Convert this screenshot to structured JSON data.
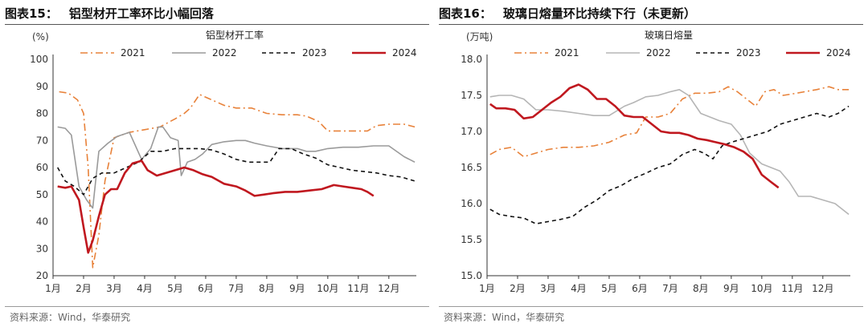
{
  "figures": [
    {
      "number": "图表15：",
      "heading": "铝型材开工率环比小幅回落",
      "source": "资料来源：Wind，华泰研究"
    },
    {
      "number": "图表16：",
      "heading": "玻璃日熔量环比持续下行（未更新）",
      "source": "资料来源：Wind，华泰研究"
    }
  ],
  "chart_data": [
    {
      "type": "line",
      "title": "铝型材开工率",
      "ylabel": "(%)",
      "xlabel": "",
      "ylim": [
        20,
        100
      ],
      "yticks": [
        20,
        30,
        40,
        50,
        60,
        70,
        80,
        90,
        100
      ],
      "xlim": [
        1,
        12.9
      ],
      "categories": [
        "1月",
        "2月",
        "3月",
        "4月",
        "5月",
        "6月",
        "7月",
        "8月",
        "9月",
        "10月",
        "11月",
        "12月"
      ],
      "legend": "top",
      "series": [
        {
          "name": "2021",
          "color": "#e8823a",
          "dash": "dashdot",
          "x": [
            1.2,
            1.5,
            1.8,
            2.0,
            2.15,
            2.3,
            2.5,
            2.7,
            3.0,
            3.5,
            4.0,
            4.5,
            5.0,
            5.3,
            5.5,
            5.8,
            6.2,
            6.6,
            7.0,
            7.5,
            8.0,
            8.5,
            9.0,
            9.3,
            9.7,
            10.0,
            10.5,
            11.0,
            11.3,
            11.6,
            12.0,
            12.5,
            12.85
          ],
          "values": [
            88,
            87.5,
            85,
            80,
            60,
            23,
            35,
            55,
            71,
            73,
            74,
            75,
            78,
            80,
            82,
            87,
            85,
            83,
            82,
            82,
            80,
            79.5,
            79.5,
            79,
            77,
            73.5,
            73.5,
            73.5,
            73.5,
            75.5,
            76,
            76,
            75
          ]
        },
        {
          "name": "2022",
          "color": "#9a9a9a",
          "dash": "solid",
          "x": [
            1.15,
            1.4,
            1.6,
            1.85,
            2.1,
            2.3,
            2.5,
            2.8,
            3.1,
            3.5,
            3.9,
            4.2,
            4.45,
            4.6,
            4.85,
            5.1,
            5.2,
            5.4,
            5.65,
            5.9,
            6.2,
            6.6,
            7.0,
            7.3,
            7.6,
            8.0,
            8.5,
            9.0,
            9.3,
            9.6,
            10.0,
            10.5,
            11.0,
            11.5,
            12.0,
            12.5,
            12.85
          ],
          "values": [
            75,
            74.5,
            72,
            53,
            48,
            45,
            66,
            69,
            71.5,
            73,
            63,
            67,
            75,
            75,
            71,
            70,
            57,
            62,
            63,
            65,
            68.5,
            69.5,
            70,
            70,
            69,
            68,
            67,
            67,
            66,
            66,
            67,
            67.5,
            67.5,
            68,
            68,
            64,
            62
          ]
        },
        {
          "name": "2023",
          "color": "#111111",
          "dash": "dashed",
          "x": [
            1.15,
            1.4,
            1.7,
            2.0,
            2.3,
            2.6,
            3.0,
            3.4,
            3.8,
            4.2,
            4.6,
            5.0,
            5.4,
            5.8,
            6.2,
            6.6,
            7.0,
            7.4,
            7.8,
            8.1,
            8.4,
            8.8,
            9.2,
            9.6,
            10.0,
            10.4,
            10.8,
            11.2,
            11.6,
            12.0,
            12.4,
            12.85
          ],
          "values": [
            60,
            55,
            53,
            50,
            56,
            58,
            58,
            60,
            62,
            66,
            66,
            67,
            67,
            67,
            66.5,
            65,
            63,
            62,
            62,
            62,
            67,
            67,
            65,
            63.5,
            61,
            60,
            59,
            58.5,
            58,
            57,
            56.5,
            55
          ]
        },
        {
          "name": "2024",
          "color": "#c0181f",
          "dash": "solid",
          "width": 2.6,
          "x": [
            1.15,
            1.4,
            1.6,
            1.85,
            2.0,
            2.15,
            2.3,
            2.5,
            2.7,
            2.9,
            3.1,
            3.35,
            3.6,
            3.9,
            4.1,
            4.4,
            4.7,
            5.0,
            5.3,
            5.6,
            5.9,
            6.2,
            6.6,
            7.0,
            7.3,
            7.6,
            7.9,
            8.2,
            8.6,
            9.0,
            9.4,
            9.8,
            10.2,
            10.5,
            10.8,
            11.1,
            11.3,
            11.5
          ],
          "values": [
            53,
            52.5,
            53,
            48,
            38,
            28.5,
            33,
            42,
            50,
            52,
            52,
            58,
            61.5,
            62.5,
            59,
            57,
            58,
            59,
            60,
            59,
            57.5,
            56.5,
            54,
            53,
            51.5,
            49.5,
            50,
            50.5,
            51,
            51,
            51.5,
            52,
            53.5,
            53,
            52.5,
            52,
            51,
            49.5
          ]
        }
      ]
    },
    {
      "type": "line",
      "title": "玻璃日熔量",
      "ylabel": "(万吨)",
      "xlabel": "",
      "ylim": [
        15.0,
        18.0
      ],
      "yticks": [
        "15.0",
        "15.5",
        "16.0",
        "16.5",
        "17.0",
        "17.5",
        "18.0"
      ],
      "xlim": [
        1,
        12.9
      ],
      "categories": [
        "1月",
        "2月",
        "3月",
        "4月",
        "5月",
        "6月",
        "7月",
        "8月",
        "9月",
        "10月",
        "11月",
        "12月"
      ],
      "legend": "top",
      "series": [
        {
          "name": "2021",
          "color": "#e8823a",
          "dash": "dashdot",
          "x": [
            1.1,
            1.4,
            1.8,
            2.2,
            2.6,
            3.0,
            3.5,
            4.0,
            4.5,
            5.0,
            5.5,
            5.9,
            6.2,
            6.6,
            7.0,
            7.4,
            7.8,
            8.2,
            8.6,
            8.9,
            9.2,
            9.5,
            9.8,
            10.1,
            10.4,
            10.7,
            11.0,
            11.4,
            11.8,
            12.2,
            12.5,
            12.85
          ],
          "values": [
            16.68,
            16.75,
            16.78,
            16.65,
            16.7,
            16.75,
            16.78,
            16.78,
            16.8,
            16.85,
            16.95,
            16.98,
            17.2,
            17.2,
            17.25,
            17.45,
            17.53,
            17.53,
            17.55,
            17.62,
            17.55,
            17.45,
            17.35,
            17.55,
            17.58,
            17.5,
            17.52,
            17.55,
            17.58,
            17.62,
            17.58,
            17.58
          ]
        },
        {
          "name": "2022",
          "color": "#b5b5b5",
          "dash": "solid",
          "x": [
            1.1,
            1.4,
            1.8,
            2.2,
            2.6,
            3.0,
            3.5,
            4.0,
            4.5,
            5.0,
            5.5,
            5.8,
            6.2,
            6.6,
            7.0,
            7.3,
            7.6,
            8.0,
            8.3,
            8.6,
            9.0,
            9.3,
            9.6,
            10.0,
            10.3,
            10.6,
            10.9,
            11.2,
            11.6,
            12.0,
            12.4,
            12.85
          ],
          "values": [
            17.48,
            17.5,
            17.5,
            17.45,
            17.3,
            17.3,
            17.28,
            17.25,
            17.22,
            17.22,
            17.35,
            17.4,
            17.48,
            17.5,
            17.55,
            17.58,
            17.5,
            17.25,
            17.2,
            17.15,
            17.1,
            16.95,
            16.7,
            16.55,
            16.5,
            16.45,
            16.3,
            16.1,
            16.1,
            16.05,
            16.0,
            15.85
          ]
        },
        {
          "name": "2023",
          "color": "#111111",
          "dash": "dashed",
          "x": [
            1.1,
            1.4,
            1.8,
            2.2,
            2.6,
            3.0,
            3.4,
            3.8,
            4.2,
            4.6,
            5.0,
            5.4,
            5.8,
            6.2,
            6.6,
            7.0,
            7.4,
            7.8,
            8.1,
            8.4,
            8.7,
            9.0,
            9.4,
            9.8,
            10.2,
            10.6,
            11.0,
            11.4,
            11.8,
            12.2,
            12.5,
            12.85
          ],
          "values": [
            15.92,
            15.85,
            15.82,
            15.8,
            15.72,
            15.75,
            15.78,
            15.82,
            15.95,
            16.05,
            16.18,
            16.25,
            16.35,
            16.42,
            16.5,
            16.55,
            16.68,
            16.75,
            16.7,
            16.62,
            16.8,
            16.85,
            16.9,
            16.95,
            17.0,
            17.1,
            17.15,
            17.2,
            17.25,
            17.2,
            17.25,
            17.35
          ]
        },
        {
          "name": "2024",
          "color": "#c0181f",
          "dash": "solid",
          "width": 2.6,
          "x": [
            1.1,
            1.3,
            1.6,
            1.9,
            2.2,
            2.5,
            2.8,
            3.1,
            3.4,
            3.7,
            4.0,
            4.3,
            4.6,
            4.9,
            5.2,
            5.5,
            5.8,
            6.1,
            6.4,
            6.7,
            7.0,
            7.3,
            7.6,
            7.9,
            8.2,
            8.5,
            8.8,
            9.1,
            9.4,
            9.7,
            10.0,
            10.3,
            10.55
          ],
          "values": [
            17.38,
            17.32,
            17.32,
            17.3,
            17.18,
            17.2,
            17.3,
            17.4,
            17.48,
            17.6,
            17.65,
            17.58,
            17.45,
            17.45,
            17.35,
            17.22,
            17.2,
            17.2,
            17.1,
            17.0,
            16.98,
            16.98,
            16.95,
            16.9,
            16.88,
            16.85,
            16.82,
            16.78,
            16.72,
            16.62,
            16.4,
            16.3,
            16.22
          ]
        }
      ]
    }
  ]
}
